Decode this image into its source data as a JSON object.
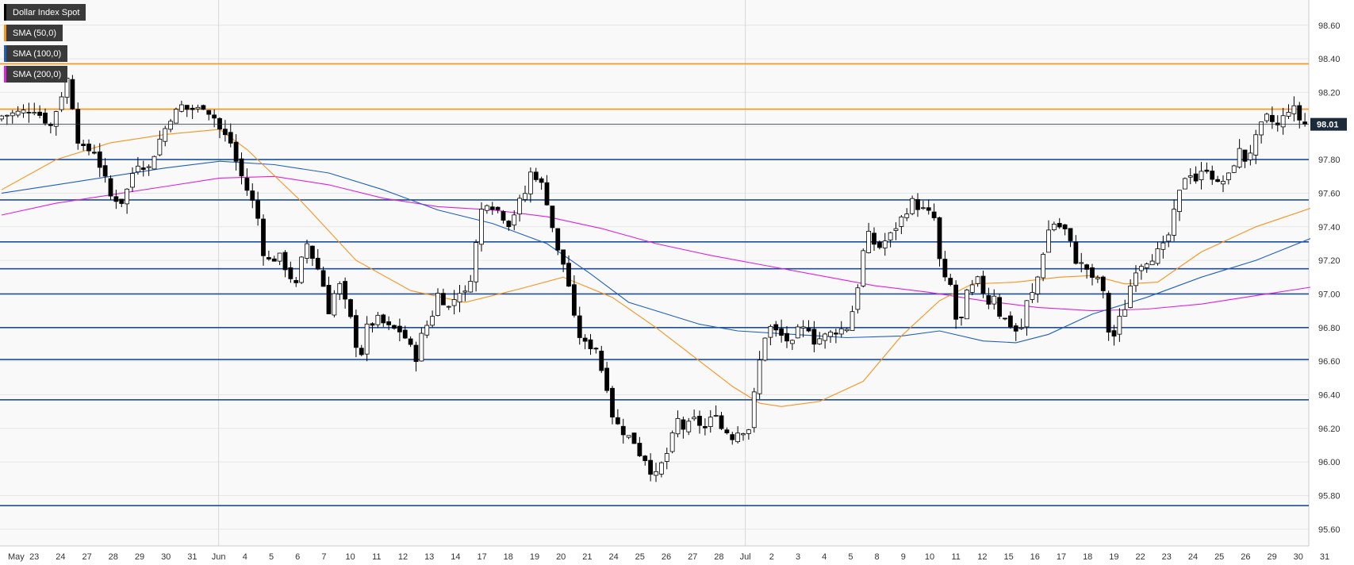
{
  "chart_data": {
    "type": "candlestick",
    "title": "Dollar Index Spot",
    "y_range": [
      95.5,
      98.75
    ],
    "y_ticks": [
      "98.60",
      "98.40",
      "98.20",
      "98.00",
      "97.80",
      "97.60",
      "97.40",
      "97.20",
      "97.00",
      "96.80",
      "96.60",
      "96.40",
      "96.20",
      "96.00",
      "95.80",
      "95.60"
    ],
    "x_labels": [
      "May",
      "23",
      "24",
      "27",
      "28",
      "29",
      "30",
      "31",
      "Jun",
      "4",
      "5",
      "6",
      "7",
      "10",
      "11",
      "12",
      "13",
      "14",
      "17",
      "18",
      "19",
      "20",
      "21",
      "24",
      "25",
      "26",
      "27",
      "28",
      "Jul",
      "2",
      "3",
      "4",
      "5",
      "8",
      "9",
      "10",
      "11",
      "12",
      "15",
      "16",
      "17",
      "18",
      "19",
      "22",
      "23",
      "24",
      "25",
      "26",
      "29",
      "30",
      "31"
    ],
    "last_price": "98.01",
    "legend": [
      {
        "label": "Dollar Index Spot",
        "color": "#000000"
      },
      {
        "label": "SMA (50,0)",
        "color": "#f7931e"
      },
      {
        "label": "SMA (100,0)",
        "color": "#1f5fbf"
      },
      {
        "label": "SMA (200,0)",
        "color": "#e020e0"
      }
    ],
    "resistance_levels": [
      98.37,
      98.1
    ],
    "horizontal_levels": [
      97.8,
      97.56,
      97.31,
      97.15,
      97.0,
      96.8,
      96.61,
      96.37,
      95.74
    ],
    "close_path": [
      [
        0,
        98.06
      ],
      [
        6,
        98.1
      ],
      [
        9,
        98.0
      ],
      [
        12,
        98.28
      ],
      [
        13,
        98.12
      ],
      [
        14,
        97.92
      ],
      [
        15,
        97.86
      ],
      [
        17,
        97.85
      ],
      [
        19,
        97.68
      ],
      [
        20,
        97.58
      ],
      [
        22,
        97.55
      ],
      [
        23,
        97.62
      ],
      [
        24,
        97.72
      ],
      [
        25,
        97.78
      ],
      [
        27,
        97.75
      ],
      [
        29,
        97.92
      ],
      [
        31,
        98.05
      ],
      [
        33,
        98.12
      ],
      [
        34,
        98.1
      ],
      [
        36,
        98.1
      ],
      [
        37,
        98.12
      ],
      [
        39,
        98.05
      ],
      [
        40,
        97.98
      ],
      [
        42,
        97.9
      ],
      [
        43,
        97.79
      ],
      [
        44,
        97.7
      ],
      [
        45,
        97.62
      ],
      [
        46,
        97.55
      ],
      [
        47,
        97.45
      ],
      [
        48,
        97.25
      ],
      [
        49,
        97.2
      ],
      [
        51,
        97.22
      ],
      [
        53,
        97.1
      ],
      [
        54,
        97.05
      ],
      [
        55,
        97.2
      ],
      [
        56,
        97.3
      ],
      [
        57,
        97.22
      ],
      [
        58,
        97.15
      ],
      [
        59,
        97.05
      ],
      [
        60,
        96.9
      ],
      [
        61,
        97.0
      ],
      [
        62,
        97.05
      ],
      [
        63,
        96.95
      ],
      [
        64,
        96.85
      ],
      [
        65,
        96.7
      ],
      [
        66,
        96.65
      ],
      [
        67,
        96.8
      ],
      [
        69,
        96.85
      ],
      [
        71,
        96.8
      ],
      [
        73,
        96.78
      ],
      [
        74,
        96.74
      ],
      [
        75,
        96.68
      ],
      [
        76,
        96.62
      ],
      [
        77,
        96.75
      ],
      [
        79,
        96.88
      ],
      [
        80,
        97.0
      ],
      [
        82,
        96.92
      ],
      [
        84,
        97.02
      ],
      [
        85,
        97.0
      ],
      [
        86,
        97.1
      ],
      [
        87,
        97.3
      ],
      [
        88,
        97.5
      ],
      [
        89,
        97.55
      ],
      [
        91,
        97.5
      ],
      [
        93,
        97.42
      ],
      [
        94,
        97.48
      ],
      [
        95,
        97.55
      ],
      [
        96,
        97.6
      ],
      [
        97,
        97.72
      ],
      [
        98,
        97.7
      ],
      [
        99,
        97.65
      ],
      [
        100,
        97.55
      ],
      [
        101,
        97.4
      ],
      [
        102,
        97.25
      ],
      [
        103,
        97.18
      ],
      [
        104,
        97.05
      ],
      [
        105,
        96.85
      ],
      [
        106,
        96.75
      ],
      [
        107,
        96.7
      ],
      [
        109,
        96.68
      ],
      [
        110,
        96.55
      ],
      [
        111,
        96.45
      ],
      [
        112,
        96.28
      ],
      [
        113,
        96.22
      ],
      [
        114,
        96.18
      ],
      [
        115,
        96.15
      ],
      [
        116,
        96.12
      ],
      [
        117,
        96.05
      ],
      [
        118,
        96.02
      ],
      [
        119,
        95.95
      ],
      [
        120,
        95.92
      ],
      [
        122,
        96.05
      ],
      [
        123,
        96.15
      ],
      [
        124,
        96.25
      ],
      [
        125,
        96.2
      ],
      [
        126,
        96.22
      ],
      [
        127,
        96.25
      ],
      [
        129,
        96.2
      ],
      [
        130,
        96.25
      ],
      [
        131,
        96.3
      ],
      [
        132,
        96.2
      ],
      [
        133,
        96.18
      ],
      [
        134,
        96.15
      ],
      [
        135,
        96.18
      ],
      [
        137,
        96.2
      ],
      [
        138,
        96.4
      ],
      [
        139,
        96.6
      ],
      [
        140,
        96.75
      ],
      [
        141,
        96.8
      ],
      [
        143,
        96.75
      ],
      [
        145,
        96.7
      ],
      [
        146,
        96.78
      ],
      [
        148,
        96.8
      ],
      [
        149,
        96.72
      ],
      [
        151,
        96.75
      ],
      [
        153,
        96.78
      ],
      [
        155,
        96.8
      ],
      [
        156,
        96.9
      ],
      [
        157,
        97.05
      ],
      [
        158,
        97.25
      ],
      [
        159,
        97.35
      ],
      [
        160,
        97.3
      ],
      [
        161,
        97.28
      ],
      [
        163,
        97.35
      ],
      [
        164,
        97.4
      ],
      [
        166,
        97.5
      ],
      [
        167,
        97.55
      ],
      [
        168,
        97.52
      ],
      [
        170,
        97.48
      ],
      [
        171,
        97.45
      ],
      [
        172,
        97.2
      ],
      [
        173,
        97.08
      ],
      [
        174,
        97.05
      ],
      [
        175,
        96.85
      ],
      [
        176,
        96.85
      ],
      [
        177,
        97.0
      ],
      [
        179,
        97.08
      ],
      [
        181,
        96.95
      ],
      [
        182,
        97.0
      ],
      [
        183,
        96.88
      ],
      [
        184,
        96.85
      ],
      [
        186,
        96.78
      ],
      [
        187,
        96.8
      ],
      [
        188,
        96.95
      ],
      [
        189,
        97.0
      ],
      [
        190,
        97.1
      ],
      [
        191,
        97.25
      ],
      [
        192,
        97.38
      ],
      [
        193,
        97.42
      ],
      [
        195,
        97.38
      ],
      [
        196,
        97.3
      ],
      [
        197,
        97.2
      ],
      [
        199,
        97.15
      ],
      [
        200,
        97.08
      ],
      [
        201,
        97.1
      ],
      [
        202,
        97.0
      ],
      [
        203,
        96.78
      ],
      [
        204,
        96.75
      ],
      [
        205,
        96.85
      ],
      [
        206,
        96.92
      ],
      [
        207,
        97.05
      ],
      [
        208,
        97.15
      ],
      [
        209,
        97.18
      ],
      [
        211,
        97.22
      ],
      [
        213,
        97.28
      ],
      [
        214,
        97.35
      ],
      [
        215,
        97.48
      ],
      [
        216,
        97.6
      ],
      [
        217,
        97.7
      ],
      [
        218,
        97.72
      ],
      [
        219,
        97.68
      ],
      [
        221,
        97.75
      ],
      [
        222,
        97.7
      ],
      [
        223,
        97.65
      ],
      [
        225,
        97.7
      ],
      [
        226,
        97.78
      ],
      [
        227,
        97.85
      ],
      [
        228,
        97.8
      ],
      [
        229,
        97.85
      ],
      [
        231,
        98.0
      ],
      [
        232,
        98.05
      ],
      [
        234,
        98.0
      ],
      [
        236,
        98.1
      ],
      [
        237,
        98.1
      ],
      [
        238,
        98.04
      ],
      [
        239,
        98.01
      ]
    ],
    "sma50": [
      [
        0,
        97.62
      ],
      [
        10,
        97.8
      ],
      [
        20,
        97.9
      ],
      [
        30,
        97.95
      ],
      [
        40,
        97.98
      ],
      [
        45,
        97.86
      ],
      [
        55,
        97.55
      ],
      [
        65,
        97.2
      ],
      [
        75,
        97.02
      ],
      [
        85,
        96.95
      ],
      [
        95,
        97.03
      ],
      [
        103,
        97.1
      ],
      [
        112,
        96.98
      ],
      [
        120,
        96.8
      ],
      [
        128,
        96.6
      ],
      [
        134,
        96.45
      ],
      [
        139,
        96.35
      ],
      [
        143,
        96.33
      ],
      [
        150,
        96.36
      ],
      [
        158,
        96.48
      ],
      [
        165,
        96.75
      ],
      [
        172,
        96.96
      ],
      [
        178,
        97.06
      ],
      [
        186,
        97.07
      ],
      [
        194,
        97.1
      ],
      [
        200,
        97.11
      ],
      [
        206,
        97.06
      ],
      [
        212,
        97.07
      ],
      [
        220,
        97.25
      ],
      [
        230,
        97.4
      ],
      [
        240,
        97.51
      ]
    ],
    "sma100": [
      [
        0,
        97.6
      ],
      [
        10,
        97.65
      ],
      [
        20,
        97.7
      ],
      [
        30,
        97.75
      ],
      [
        40,
        97.79
      ],
      [
        50,
        97.77
      ],
      [
        60,
        97.72
      ],
      [
        70,
        97.62
      ],
      [
        80,
        97.5
      ],
      [
        90,
        97.42
      ],
      [
        100,
        97.3
      ],
      [
        108,
        97.12
      ],
      [
        115,
        96.95
      ],
      [
        122,
        96.88
      ],
      [
        128,
        96.82
      ],
      [
        135,
        96.78
      ],
      [
        145,
        96.76
      ],
      [
        155,
        96.74
      ],
      [
        165,
        96.75
      ],
      [
        172,
        96.78
      ],
      [
        180,
        96.72
      ],
      [
        186,
        96.71
      ],
      [
        192,
        96.76
      ],
      [
        200,
        96.88
      ],
      [
        210,
        96.98
      ],
      [
        220,
        97.1
      ],
      [
        230,
        97.2
      ],
      [
        240,
        97.33
      ]
    ],
    "sma200": [
      [
        0,
        97.47
      ],
      [
        10,
        97.54
      ],
      [
        20,
        97.59
      ],
      [
        30,
        97.64
      ],
      [
        40,
        97.69
      ],
      [
        50,
        97.7
      ],
      [
        60,
        97.65
      ],
      [
        70,
        97.57
      ],
      [
        80,
        97.52
      ],
      [
        90,
        97.5
      ],
      [
        100,
        97.46
      ],
      [
        110,
        97.39
      ],
      [
        120,
        97.3
      ],
      [
        130,
        97.23
      ],
      [
        140,
        97.17
      ],
      [
        150,
        97.11
      ],
      [
        160,
        97.05
      ],
      [
        170,
        97.01
      ],
      [
        180,
        96.96
      ],
      [
        190,
        96.92
      ],
      [
        200,
        96.9
      ],
      [
        210,
        96.91
      ],
      [
        220,
        96.94
      ],
      [
        230,
        96.99
      ],
      [
        240,
        97.04
      ]
    ]
  }
}
